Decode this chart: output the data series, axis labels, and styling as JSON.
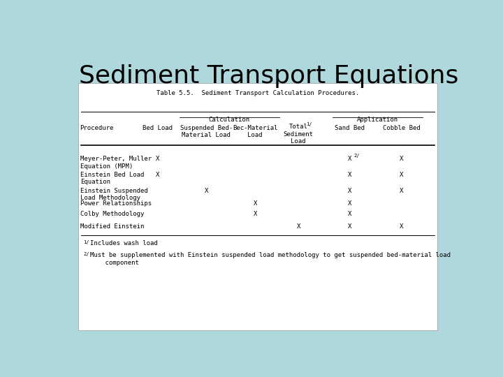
{
  "title": "Sediment Transport Equations",
  "title_fontsize": 26,
  "title_fontweight": "normal",
  "bg_color": "#aed8dc",
  "table_caption": "Table 5.5.  Sediment Transport Calculation Procedures.",
  "col_group_calc": "Calculation",
  "col_group_app": "Application",
  "col_headers_proc": "Procedure",
  "col_headers_bed": "Bed Load",
  "col_headers_susp": "Suspended Bed-\nMaterial Load",
  "col_headers_bec": "Bec-Material\nLoad",
  "col_headers_total": "Total",
  "col_headers_total_sup": "1/",
  "col_headers_sed": "Sediment\nLoad",
  "col_headers_sand": "Sand Bed",
  "col_headers_cobble": "Cobble Bed",
  "rows": [
    [
      "Meyer-Peter, Muller\nEquation (MPM)",
      "X",
      "",
      "",
      "",
      "X",
      "2/",
      "X"
    ],
    [
      "Einstein Bed Load\nEquation",
      "X",
      "",
      "",
      "",
      "X",
      "",
      "X"
    ],
    [
      "Einstein Suspended\nLoad Methodology",
      "",
      "X",
      "",
      "",
      "X",
      "",
      "X"
    ],
    [
      "Power Relationships",
      "",
      "",
      "X",
      "",
      "X",
      "",
      ""
    ],
    [
      "Colby Methodology",
      "",
      "",
      "X",
      "",
      "X",
      "",
      ""
    ],
    [
      "Modified Einstein",
      "",
      "",
      "",
      "X",
      "X",
      "",
      "X"
    ]
  ],
  "font_family": "monospace",
  "table_font_size": 6.5,
  "caption_font_size": 6.5,
  "fn1_super": "1/",
  "fn1_text": "Includes wash load",
  "fn2_super": "2/",
  "fn2_text": "Must be supplemented with Einstein suspended load methodology to get suspended bed-material load\n    component"
}
